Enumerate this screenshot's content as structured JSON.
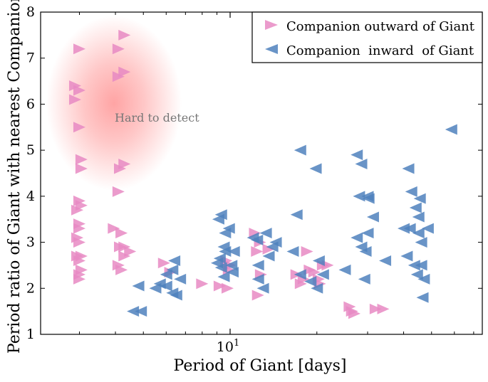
{
  "chart_data": {
    "type": "scatter",
    "xlabel": "Period of Giant [days]",
    "ylabel": "Period ratio of Giant with nearest Companion",
    "xscale": "log",
    "xlim": [
      2.2,
      75
    ],
    "ylim": [
      1,
      8
    ],
    "x_major_ticks": [
      {
        "value": 10,
        "label": "10",
        "exponent": "1"
      }
    ],
    "x_minor_ticks": [
      3,
      4,
      5,
      6,
      7,
      8,
      9,
      20,
      30,
      40,
      50,
      60,
      70
    ],
    "y_ticks": [
      1,
      2,
      3,
      4,
      5,
      6,
      7,
      8
    ],
    "grid": false,
    "legend_position": "top-right",
    "annotation": {
      "text": "Hard to detect",
      "x": 4.5,
      "y": 5.7,
      "color": "#ff9a9a"
    },
    "series": [
      {
        "name": "Companion outward of Giant",
        "marker": "triangle-right",
        "color": "#e78ac3",
        "points": [
          [
            3.0,
            7.2
          ],
          [
            4.3,
            7.5
          ],
          [
            4.1,
            7.2
          ],
          [
            4.3,
            6.7
          ],
          [
            4.1,
            6.6
          ],
          [
            2.9,
            6.4
          ],
          [
            3.0,
            6.3
          ],
          [
            2.9,
            6.1
          ],
          [
            3.0,
            5.5
          ],
          [
            3.05,
            4.8
          ],
          [
            3.05,
            4.6
          ],
          [
            4.3,
            4.7
          ],
          [
            4.15,
            4.6
          ],
          [
            4.1,
            4.1
          ],
          [
            3.0,
            3.9
          ],
          [
            3.05,
            3.8
          ],
          [
            2.95,
            3.7
          ],
          [
            3.0,
            3.4
          ],
          [
            3.0,
            3.3
          ],
          [
            2.95,
            3.1
          ],
          [
            3.0,
            3.0
          ],
          [
            2.95,
            2.7
          ],
          [
            3.05,
            2.7
          ],
          [
            3.0,
            2.6
          ],
          [
            3.05,
            2.4
          ],
          [
            3.0,
            2.3
          ],
          [
            3.0,
            2.2
          ],
          [
            3.95,
            3.3
          ],
          [
            4.2,
            3.2
          ],
          [
            4.15,
            2.9
          ],
          [
            4.3,
            2.9
          ],
          [
            4.5,
            2.8
          ],
          [
            4.3,
            2.7
          ],
          [
            4.1,
            2.5
          ],
          [
            4.2,
            2.4
          ],
          [
            5.9,
            2.55
          ],
          [
            6.2,
            2.35
          ],
          [
            8.0,
            2.1
          ],
          [
            9.2,
            2.05
          ],
          [
            9.8,
            2.0
          ],
          [
            9.7,
            2.6
          ],
          [
            10.0,
            2.5
          ],
          [
            9.9,
            2.4
          ],
          [
            12.2,
            3.2
          ],
          [
            12.7,
            3.0
          ],
          [
            12.4,
            2.8
          ],
          [
            13.6,
            2.85
          ],
          [
            12.8,
            2.3
          ],
          [
            12.5,
            1.85
          ],
          [
            17.0,
            2.3
          ],
          [
            18.0,
            2.2
          ],
          [
            17.6,
            2.1
          ],
          [
            18.5,
            2.8
          ],
          [
            18.9,
            2.4
          ],
          [
            19.6,
            2.35
          ],
          [
            20.3,
            2.2
          ],
          [
            20.5,
            2.1
          ],
          [
            21.0,
            2.5
          ],
          [
            21.8,
            2.5
          ],
          [
            26.0,
            1.6
          ],
          [
            26.5,
            1.5
          ],
          [
            27.0,
            1.45
          ],
          [
            32.0,
            1.55
          ],
          [
            34.0,
            1.55
          ]
        ]
      },
      {
        "name": "Companion  inward  of Giant",
        "marker": "triangle-left",
        "color": "#4f81bd",
        "points": [
          [
            4.8,
            2.05
          ],
          [
            4.6,
            1.5
          ],
          [
            4.9,
            1.5
          ],
          [
            6.0,
            2.3
          ],
          [
            6.4,
            2.6
          ],
          [
            6.7,
            2.2
          ],
          [
            5.7,
            2.1
          ],
          [
            5.5,
            2.0
          ],
          [
            6.3,
            1.9
          ],
          [
            6.5,
            1.85
          ],
          [
            6.0,
            2.05
          ],
          [
            6.3,
            2.4
          ],
          [
            9.3,
            3.6
          ],
          [
            9.1,
            3.5
          ],
          [
            9.9,
            3.3
          ],
          [
            9.6,
            3.2
          ],
          [
            9.5,
            2.9
          ],
          [
            9.6,
            2.8
          ],
          [
            9.2,
            2.65
          ],
          [
            9.0,
            2.55
          ],
          [
            9.3,
            2.45
          ],
          [
            10.1,
            2.5
          ],
          [
            10.2,
            2.35
          ],
          [
            9.5,
            2.25
          ],
          [
            10.3,
            2.8
          ],
          [
            12.0,
            3.1
          ],
          [
            12.4,
            3.05
          ],
          [
            13.3,
            3.2
          ],
          [
            14.0,
            2.9
          ],
          [
            13.6,
            2.7
          ],
          [
            12.5,
            2.5
          ],
          [
            14.4,
            3.0
          ],
          [
            13.0,
            2.0
          ],
          [
            12.5,
            2.2
          ],
          [
            17.5,
            5.0
          ],
          [
            19.8,
            4.6
          ],
          [
            17.0,
            3.6
          ],
          [
            16.5,
            2.8
          ],
          [
            17.5,
            2.3
          ],
          [
            20.3,
            2.6
          ],
          [
            21.0,
            2.3
          ],
          [
            19.0,
            2.15
          ],
          [
            20.0,
            2.0
          ],
          [
            27.5,
            4.9
          ],
          [
            28.5,
            4.7
          ],
          [
            28.0,
            4.0
          ],
          [
            30.0,
            4.0
          ],
          [
            30.2,
            3.95
          ],
          [
            31.3,
            3.55
          ],
          [
            30.0,
            3.2
          ],
          [
            27.5,
            3.1
          ],
          [
            28.5,
            2.9
          ],
          [
            29.5,
            2.8
          ],
          [
            25.0,
            2.4
          ],
          [
            29.2,
            2.2
          ],
          [
            41.5,
            4.6
          ],
          [
            42.5,
            4.1
          ],
          [
            45.5,
            3.95
          ],
          [
            44.0,
            3.75
          ],
          [
            45.0,
            3.55
          ],
          [
            40.0,
            3.3
          ],
          [
            42.0,
            3.3
          ],
          [
            45.0,
            3.2
          ],
          [
            48.5,
            3.3
          ],
          [
            46.0,
            3.0
          ],
          [
            41.0,
            2.7
          ],
          [
            43.5,
            2.5
          ],
          [
            46.0,
            2.5
          ],
          [
            44.5,
            2.3
          ],
          [
            47.0,
            2.2
          ],
          [
            46.5,
            1.8
          ],
          [
            58.5,
            5.45
          ],
          [
            34.5,
            2.6
          ]
        ]
      }
    ]
  },
  "legend": {
    "items": [
      {
        "label": "Companion outward of Giant",
        "marker": "triangle-right",
        "color": "#e78ac3"
      },
      {
        "label": "Companion  inward  of Giant",
        "marker": "triangle-left",
        "color": "#4f81bd"
      }
    ]
  }
}
